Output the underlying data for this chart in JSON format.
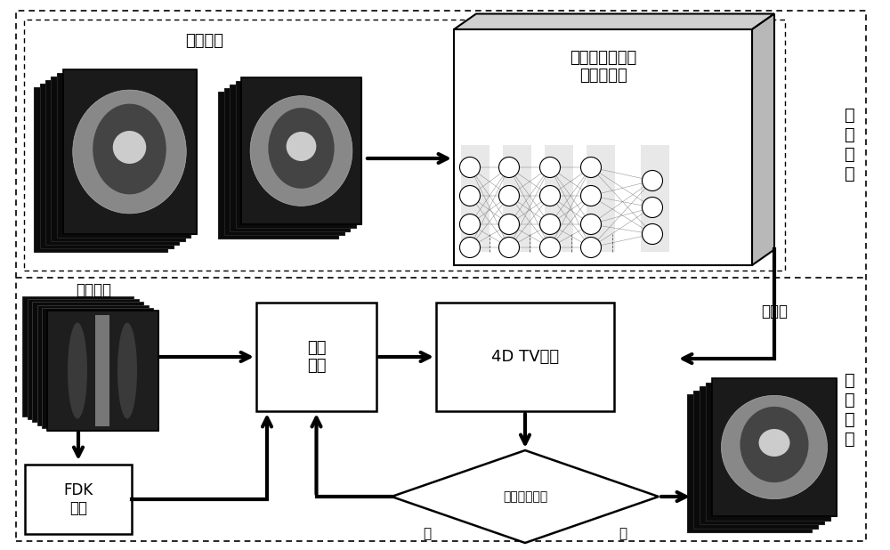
{
  "bg_color": "#ffffff",
  "train_label": "训\n练\n过\n程",
  "recon_label": "重\n建\n过\n程",
  "training_data_label": "训练数据",
  "proj_data_label": "投影数据",
  "nn_label": "运动补偿卷积神\n经网络学习",
  "img_update_label": "图像\n更新",
  "tv_label": "4D TV约束",
  "fdk_label": "FDK\n重建",
  "iter_label": "最大迭代次数",
  "yes_label": "是",
  "no_label": "否",
  "recon_img_label": "重建图",
  "figw": 10.0,
  "figh": 6.18,
  "dpi": 100
}
